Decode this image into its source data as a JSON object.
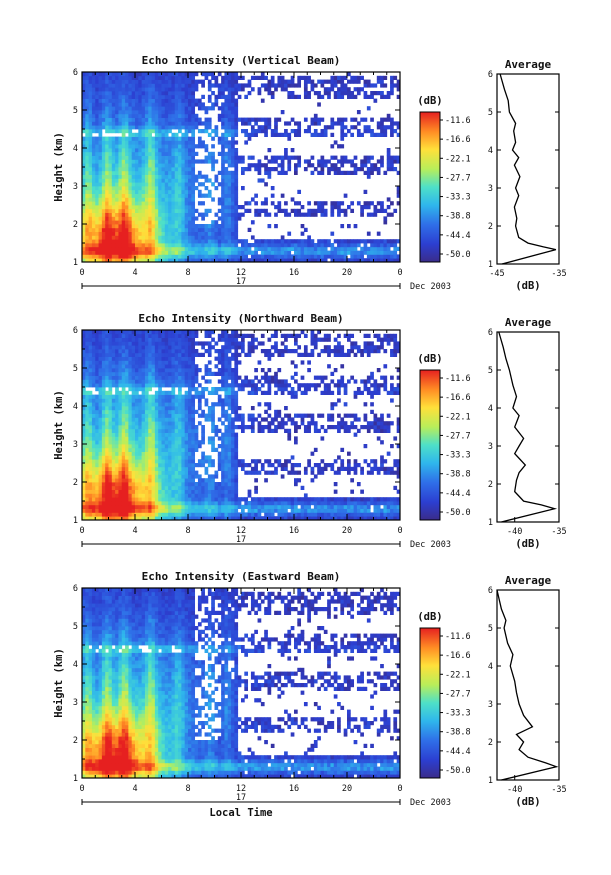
{
  "chart_data": [
    {
      "type": "heatmap",
      "title": "Echo Intensity (Vertical Beam)",
      "xlabel": "",
      "ylabel": "Height (km)",
      "x_ticks": [
        "0",
        "4",
        "8",
        "12",
        "16",
        "20",
        "0"
      ],
      "x_range_hours": [
        0,
        24
      ],
      "y_ticks": [
        "1",
        "2",
        "3",
        "4",
        "5",
        "6"
      ],
      "ylim": [
        1,
        6
      ],
      "date_label": "17",
      "date_suffix": "Dec 2003",
      "colorbar": {
        "unit": "(dB)",
        "ticks": [
          "-11.6",
          "-16.6",
          "-22.1",
          "-27.7",
          "-33.3",
          "-38.8",
          "-44.4",
          "-50.0"
        ],
        "range": [
          -52,
          -8
        ]
      },
      "profile": {
        "title": "Average",
        "xlabel": "(dB)",
        "x_ticks": [
          "-45",
          "-35"
        ],
        "xlim": [
          -45,
          -35
        ],
        "points": [
          [
            -44.2,
            1.0
          ],
          [
            -35.5,
            1.38
          ],
          [
            -37.5,
            1.45
          ],
          [
            -40,
            1.55
          ],
          [
            -41.5,
            1.7
          ],
          [
            -42,
            2.0
          ],
          [
            -41.8,
            2.2
          ],
          [
            -42.2,
            2.5
          ],
          [
            -41.5,
            2.8
          ],
          [
            -42.0,
            3.0
          ],
          [
            -41.3,
            3.3
          ],
          [
            -42.2,
            3.6
          ],
          [
            -41.5,
            3.8
          ],
          [
            -42.5,
            4.0
          ],
          [
            -42.0,
            4.2
          ],
          [
            -42.3,
            4.5
          ],
          [
            -42.0,
            4.7
          ],
          [
            -43.0,
            5.0
          ],
          [
            -43.2,
            5.3
          ],
          [
            -43.8,
            5.6
          ],
          [
            -44.5,
            6.0
          ]
        ]
      }
    },
    {
      "type": "heatmap",
      "title": "Echo Intensity (Northward Beam)",
      "xlabel": "",
      "ylabel": "Height (km)",
      "x_ticks": [
        "0",
        "4",
        "8",
        "12",
        "16",
        "20",
        "0"
      ],
      "x_range_hours": [
        0,
        24
      ],
      "y_ticks": [
        "1",
        "2",
        "3",
        "4",
        "5",
        "6"
      ],
      "ylim": [
        1,
        6
      ],
      "date_label": "17",
      "date_suffix": "Dec 2003",
      "colorbar": {
        "unit": "(dB)",
        "ticks": [
          "-11.6",
          "-16.6",
          "-22.1",
          "-27.7",
          "-33.3",
          "-38.8",
          "-44.4",
          "-50.0"
        ],
        "range": [
          -52,
          -8
        ]
      },
      "profile": {
        "title": "Average",
        "xlabel": "(dB)",
        "x_ticks": [
          "-40",
          "-35"
        ],
        "xlim": [
          -42,
          -35
        ],
        "points": [
          [
            -41.5,
            1.0
          ],
          [
            -35.5,
            1.35
          ],
          [
            -37,
            1.45
          ],
          [
            -39,
            1.55
          ],
          [
            -40,
            1.8
          ],
          [
            -39.8,
            2.1
          ],
          [
            -39.5,
            2.3
          ],
          [
            -38.8,
            2.5
          ],
          [
            -40,
            2.8
          ],
          [
            -39.5,
            3.0
          ],
          [
            -39.0,
            3.2
          ],
          [
            -40,
            3.5
          ],
          [
            -39.5,
            3.8
          ],
          [
            -40.2,
            4.0
          ],
          [
            -39.8,
            4.3
          ],
          [
            -40.2,
            4.6
          ],
          [
            -40.6,
            5.0
          ],
          [
            -41.0,
            5.3
          ],
          [
            -41.3,
            5.6
          ],
          [
            -41.8,
            6.0
          ]
        ]
      }
    },
    {
      "type": "heatmap",
      "title": "Echo Intensity (Eastward Beam)",
      "xlabel": "Local Time",
      "ylabel": "Height (km)",
      "x_ticks": [
        "0",
        "4",
        "8",
        "12",
        "16",
        "20",
        "0"
      ],
      "x_range_hours": [
        0,
        24
      ],
      "y_ticks": [
        "1",
        "2",
        "3",
        "4",
        "5",
        "6"
      ],
      "ylim": [
        1,
        6
      ],
      "date_label": "17",
      "date_suffix": "Dec 2003",
      "colorbar": {
        "unit": "(dB)",
        "ticks": [
          "-11.6",
          "-16.6",
          "-22.1",
          "-27.7",
          "-33.3",
          "-38.8",
          "-44.4",
          "-50.0"
        ],
        "range": [
          -52,
          -8
        ]
      },
      "profile": {
        "title": "Average",
        "xlabel": "(dB)",
        "x_ticks": [
          "-40",
          "-35"
        ],
        "xlim": [
          -42,
          -35
        ],
        "points": [
          [
            -41.5,
            1.0
          ],
          [
            -35.3,
            1.35
          ],
          [
            -36.5,
            1.45
          ],
          [
            -38.5,
            1.6
          ],
          [
            -39.5,
            1.8
          ],
          [
            -39.0,
            2.0
          ],
          [
            -39.8,
            2.2
          ],
          [
            -38.0,
            2.4
          ],
          [
            -39.0,
            2.7
          ],
          [
            -39.5,
            3.0
          ],
          [
            -39.8,
            3.3
          ],
          [
            -40.0,
            3.6
          ],
          [
            -40.5,
            4.0
          ],
          [
            -40.2,
            4.3
          ],
          [
            -40.8,
            4.6
          ],
          [
            -41.2,
            5.0
          ],
          [
            -41.0,
            5.2
          ],
          [
            -41.5,
            5.5
          ],
          [
            -42.0,
            6.0
          ]
        ]
      }
    }
  ]
}
